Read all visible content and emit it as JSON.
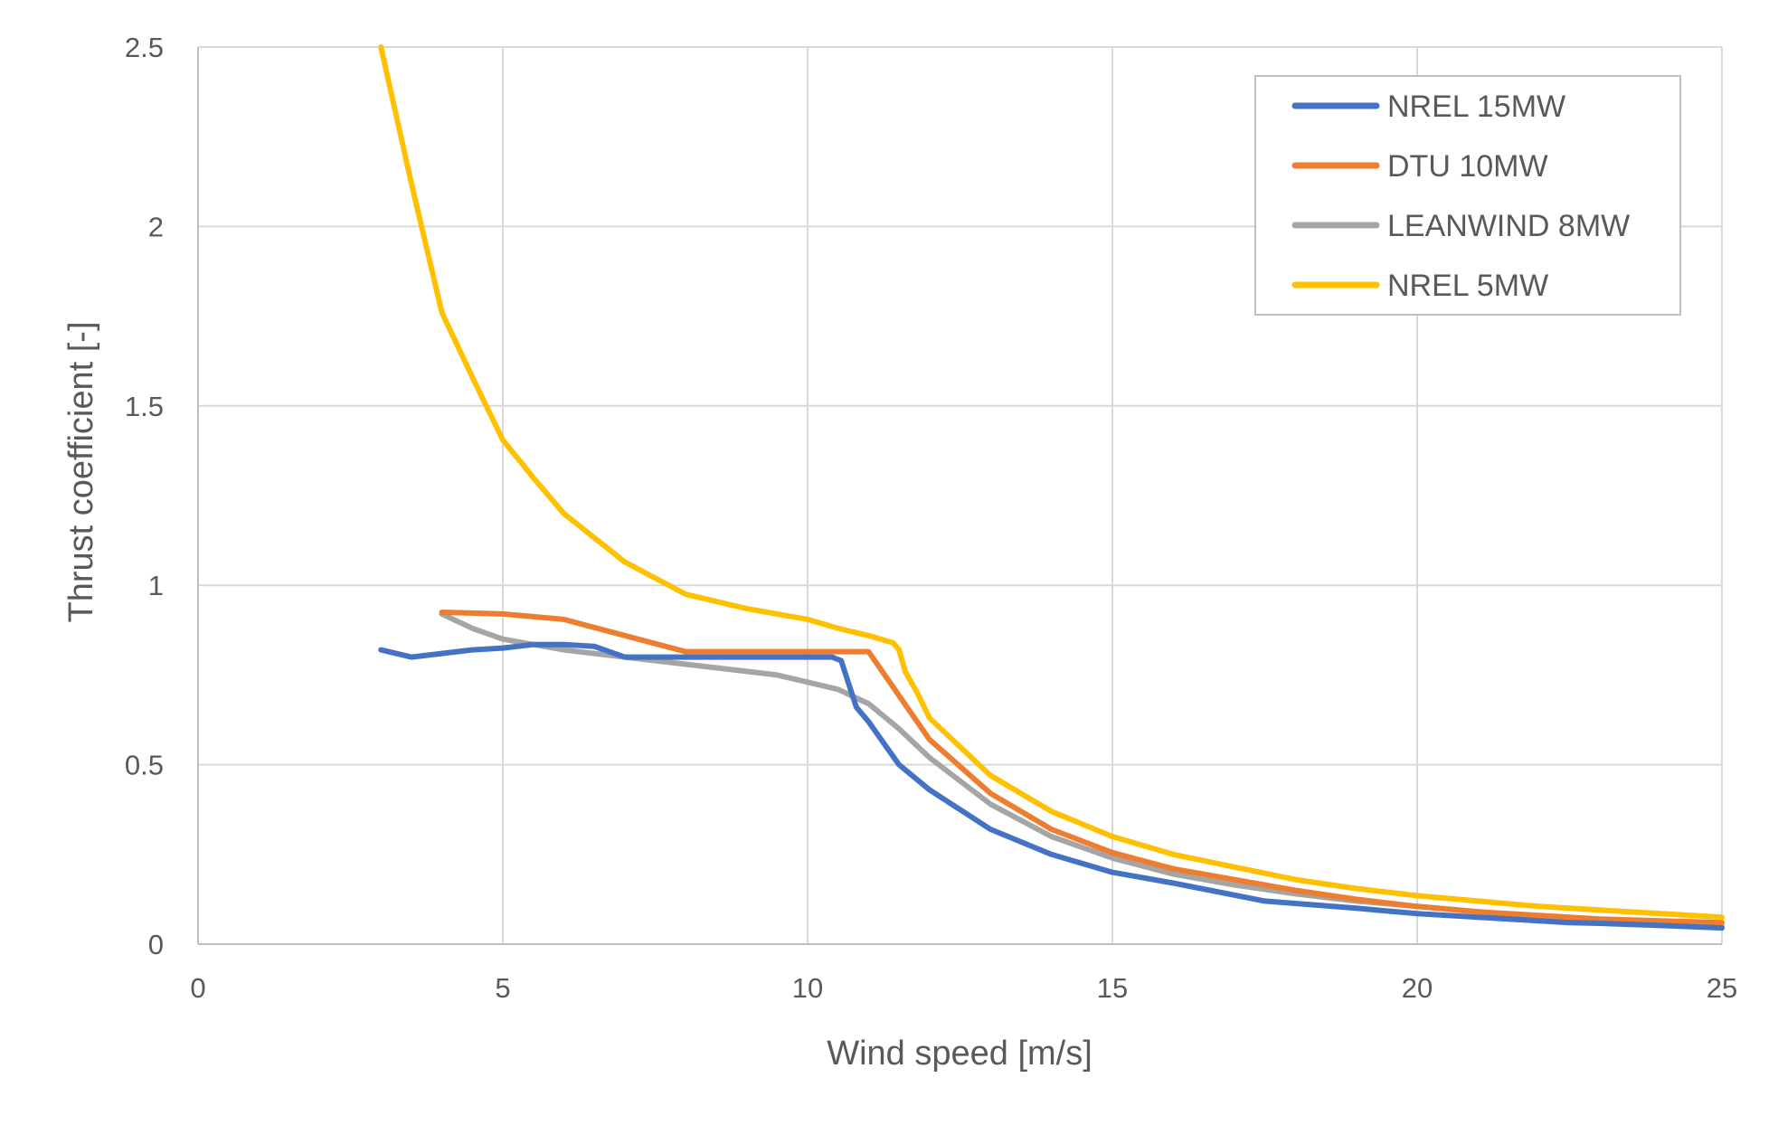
{
  "chart_data": {
    "type": "line",
    "title": "",
    "xlabel": "Wind speed [m/s]",
    "ylabel": "Thrust coefficient [-]",
    "xlim": [
      0,
      25
    ],
    "ylim": [
      0,
      2.5
    ],
    "xticks": [
      0,
      5,
      10,
      15,
      20,
      25
    ],
    "xtick_labels": [
      "0",
      "5",
      "10",
      "15",
      "20",
      "25"
    ],
    "yticks": [
      0,
      0.5,
      1,
      1.5,
      2,
      2.5
    ],
    "ytick_labels": [
      "0",
      "0.5",
      "1",
      "1.5",
      "2",
      "2.5"
    ],
    "grid": true,
    "legend_position": "top-right",
    "series": [
      {
        "name": "NREL 15MW",
        "color": "#4472c4",
        "points": [
          [
            3,
            0.82
          ],
          [
            3.5,
            0.8
          ],
          [
            4,
            0.81
          ],
          [
            4.5,
            0.82
          ],
          [
            5,
            0.825
          ],
          [
            5.5,
            0.835
          ],
          [
            6,
            0.835
          ],
          [
            6.5,
            0.83
          ],
          [
            7,
            0.8
          ],
          [
            8,
            0.8
          ],
          [
            9,
            0.8
          ],
          [
            10,
            0.8
          ],
          [
            10.4,
            0.8
          ],
          [
            10.55,
            0.79
          ],
          [
            10.8,
            0.66
          ],
          [
            11,
            0.62
          ],
          [
            11.5,
            0.5
          ],
          [
            12,
            0.43
          ],
          [
            13,
            0.32
          ],
          [
            14,
            0.25
          ],
          [
            15,
            0.2
          ],
          [
            16,
            0.17
          ],
          [
            17.5,
            0.12
          ],
          [
            19,
            0.1
          ],
          [
            20,
            0.085
          ],
          [
            21,
            0.075
          ],
          [
            22,
            0.065
          ],
          [
            22.5,
            0.06
          ],
          [
            23,
            0.058
          ],
          [
            24,
            0.052
          ],
          [
            25,
            0.045
          ]
        ]
      },
      {
        "name": "DTU 10MW",
        "color": "#ed7d31",
        "points": [
          [
            4,
            0.925
          ],
          [
            5,
            0.92
          ],
          [
            6,
            0.905
          ],
          [
            7,
            0.86
          ],
          [
            8,
            0.815
          ],
          [
            9,
            0.815
          ],
          [
            10,
            0.815
          ],
          [
            11,
            0.815
          ],
          [
            12,
            0.57
          ],
          [
            13,
            0.42
          ],
          [
            14,
            0.32
          ],
          [
            15,
            0.255
          ],
          [
            16,
            0.21
          ],
          [
            17,
            0.18
          ],
          [
            18,
            0.15
          ],
          [
            19,
            0.125
          ],
          [
            20,
            0.105
          ],
          [
            21,
            0.09
          ],
          [
            22,
            0.08
          ],
          [
            23,
            0.07
          ],
          [
            24,
            0.065
          ],
          [
            25,
            0.06
          ]
        ]
      },
      {
        "name": "LEANWIND 8MW",
        "color": "#a5a5a5",
        "points": [
          [
            4,
            0.92
          ],
          [
            4.5,
            0.88
          ],
          [
            5,
            0.85
          ],
          [
            6,
            0.82
          ],
          [
            7,
            0.8
          ],
          [
            8,
            0.78
          ],
          [
            9,
            0.76
          ],
          [
            9.5,
            0.75
          ],
          [
            10,
            0.73
          ],
          [
            10.5,
            0.71
          ],
          [
            11,
            0.67
          ],
          [
            11.5,
            0.6
          ],
          [
            12,
            0.52
          ],
          [
            13,
            0.39
          ],
          [
            14,
            0.3
          ],
          [
            15,
            0.24
          ],
          [
            16,
            0.195
          ],
          [
            17,
            0.165
          ],
          [
            18,
            0.14
          ],
          [
            19,
            0.12
          ],
          [
            20,
            0.105
          ],
          [
            21,
            0.09
          ],
          [
            22,
            0.078
          ],
          [
            23,
            0.068
          ],
          [
            24,
            0.058
          ],
          [
            25,
            0.05
          ]
        ]
      },
      {
        "name": "NREL 5MW",
        "color": "#ffc000",
        "points": [
          [
            3,
            2.5
          ],
          [
            3.5,
            2.12
          ],
          [
            4,
            1.76
          ],
          [
            4.5,
            1.58
          ],
          [
            5,
            1.405
          ],
          [
            5.5,
            1.3
          ],
          [
            6,
            1.2
          ],
          [
            7,
            1.065
          ],
          [
            8,
            0.975
          ],
          [
            9,
            0.935
          ],
          [
            10,
            0.905
          ],
          [
            10.5,
            0.88
          ],
          [
            11,
            0.86
          ],
          [
            11.4,
            0.84
          ],
          [
            11.5,
            0.82
          ],
          [
            11.6,
            0.76
          ],
          [
            11.8,
            0.7
          ],
          [
            12,
            0.63
          ],
          [
            13,
            0.47
          ],
          [
            14,
            0.37
          ],
          [
            15,
            0.3
          ],
          [
            16,
            0.25
          ],
          [
            17,
            0.215
          ],
          [
            18,
            0.18
          ],
          [
            19,
            0.155
          ],
          [
            20,
            0.135
          ],
          [
            21,
            0.12
          ],
          [
            22,
            0.105
          ],
          [
            23,
            0.095
          ],
          [
            24,
            0.085
          ],
          [
            25,
            0.075
          ]
        ]
      }
    ]
  }
}
